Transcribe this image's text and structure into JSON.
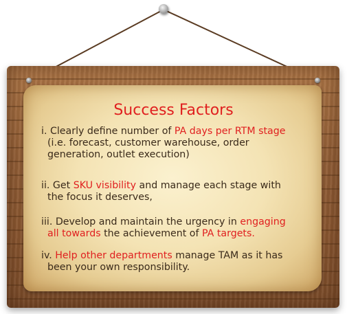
{
  "title": "Success Factors",
  "items": [
    {
      "lines": [
        [
          {
            "t": "i. Clearly define number of ",
            "hl": false
          },
          {
            "t": "PA days per RTM stage",
            "hl": true
          }
        ],
        [
          {
            "t": "(i.e. forecast, customer warehouse, order",
            "hl": false
          }
        ],
        [
          {
            "t": "generation, outlet execution)",
            "hl": false
          }
        ]
      ]
    },
    {
      "lines": [
        [
          {
            "t": "ii. Get ",
            "hl": false
          },
          {
            "t": "SKU visibility",
            "hl": true
          },
          {
            "t": " and manage each stage with",
            "hl": false
          }
        ],
        [
          {
            "t": "the focus it deserves,",
            "hl": false
          }
        ]
      ]
    },
    {
      "lines": [
        [
          {
            "t": "iii. Develop and maintain the urgency in ",
            "hl": false
          },
          {
            "t": "engaging",
            "hl": true
          }
        ],
        [
          {
            "t": "all towards",
            "hl": true
          },
          {
            "t": " the achievement of ",
            "hl": false
          },
          {
            "t": "PA targets.",
            "hl": true
          }
        ]
      ]
    },
    {
      "lines": [
        [
          {
            "t": "iv. ",
            "hl": false
          },
          {
            "t": "Help other departments",
            "hl": true
          },
          {
            "t": " manage TAM as it has",
            "hl": false
          }
        ],
        [
          {
            "t": "been your own responsibility.",
            "hl": false
          }
        ]
      ]
    }
  ],
  "colors": {
    "highlight": "#e02020",
    "text": "#3a2a1a"
  },
  "icons": [
    "nail-icon",
    "hook-icon"
  ]
}
